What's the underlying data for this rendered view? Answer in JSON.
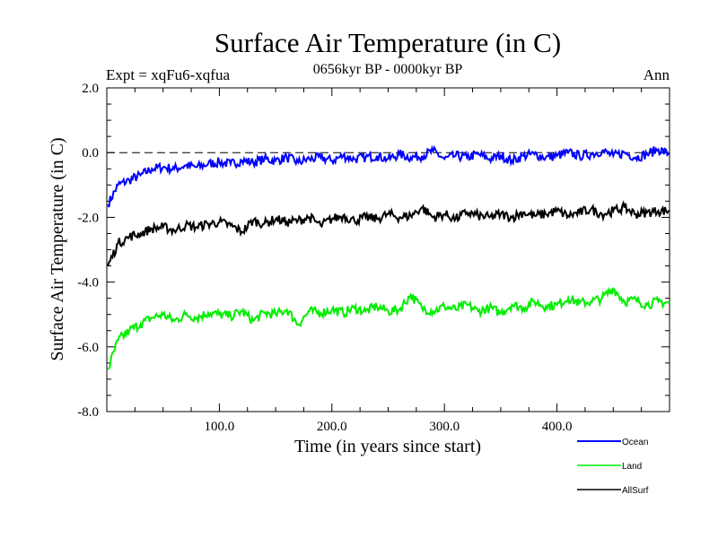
{
  "chart_data": {
    "type": "line",
    "title": "Surface Air Temperature (in C)",
    "subtitle": "0656kyr BP - 0000kyr BP",
    "left_label": "Expt = xqFu6-xqfua",
    "right_label": "Ann",
    "xlabel": "Time (in years since start)",
    "ylabel": "Surface Air Temperature (in C)",
    "xlim": [
      0,
      500
    ],
    "ylim": [
      -8.0,
      2.0
    ],
    "xticks": [
      100,
      200,
      300,
      400
    ],
    "xtick_labels": [
      "100.0",
      "200.0",
      "300.0",
      "400.0"
    ],
    "yticks": [
      2.0,
      0.0,
      -2.0,
      -4.0,
      -6.0,
      -8.0
    ],
    "ytick_labels": [
      "2.0",
      "0.0",
      "-2.0",
      "-4.0",
      "-6.0",
      "-8.0"
    ],
    "reference_line": 0.0,
    "legend_position": "bottom-right",
    "x": [
      1,
      10,
      20,
      30,
      40,
      50,
      60,
      70,
      80,
      90,
      100,
      110,
      120,
      130,
      140,
      150,
      160,
      170,
      180,
      190,
      200,
      210,
      220,
      230,
      240,
      250,
      260,
      270,
      280,
      290,
      300,
      310,
      320,
      330,
      340,
      350,
      360,
      370,
      380,
      390,
      400,
      410,
      420,
      430,
      440,
      450,
      460,
      470,
      480,
      490,
      500
    ],
    "series": [
      {
        "name": "Ocean",
        "color": "#0000ff",
        "values": [
          -1.6,
          -1.0,
          -0.85,
          -0.7,
          -0.5,
          -0.45,
          -0.5,
          -0.4,
          -0.45,
          -0.35,
          -0.3,
          -0.35,
          -0.25,
          -0.3,
          -0.2,
          -0.25,
          -0.15,
          -0.3,
          -0.2,
          -0.15,
          -0.25,
          -0.1,
          -0.2,
          -0.15,
          -0.1,
          -0.2,
          -0.05,
          -0.15,
          -0.1,
          0.05,
          -0.2,
          -0.1,
          -0.15,
          -0.05,
          -0.2,
          -0.1,
          -0.25,
          -0.1,
          -0.05,
          -0.15,
          -0.1,
          0.0,
          -0.1,
          -0.05,
          0.05,
          -0.1,
          0.0,
          -0.15,
          -0.05,
          0.1,
          -0.05
        ]
      },
      {
        "name": "Land",
        "color": "#00ee00",
        "values": [
          -6.7,
          -5.8,
          -5.5,
          -5.3,
          -5.1,
          -5.0,
          -5.2,
          -5.0,
          -5.1,
          -4.95,
          -5.0,
          -5.05,
          -4.9,
          -5.2,
          -4.95,
          -5.0,
          -4.85,
          -5.3,
          -4.9,
          -4.95,
          -4.85,
          -4.95,
          -4.8,
          -4.9,
          -4.75,
          -4.9,
          -4.85,
          -4.4,
          -4.8,
          -4.9,
          -4.75,
          -4.85,
          -4.7,
          -4.9,
          -4.8,
          -4.95,
          -4.7,
          -4.8,
          -4.6,
          -4.75,
          -4.7,
          -4.5,
          -4.65,
          -4.6,
          -4.5,
          -4.2,
          -4.6,
          -4.55,
          -4.7,
          -4.6,
          -4.65
        ]
      },
      {
        "name": "AllSurf",
        "color": "#000000",
        "values": [
          -3.5,
          -2.8,
          -2.6,
          -2.5,
          -2.35,
          -2.3,
          -2.4,
          -2.25,
          -2.3,
          -2.2,
          -2.15,
          -2.25,
          -2.45,
          -2.1,
          -2.2,
          -2.05,
          -2.15,
          -2.1,
          -2.0,
          -2.25,
          -2.05,
          -1.95,
          -2.1,
          -2.0,
          -2.05,
          -1.9,
          -2.0,
          -1.95,
          -1.7,
          -2.0,
          -1.9,
          -2.05,
          -1.85,
          -1.95,
          -2.0,
          -1.9,
          -2.0,
          -1.85,
          -1.95,
          -1.9,
          -1.8,
          -1.95,
          -1.85,
          -1.75,
          -1.9,
          -1.8,
          -1.7,
          -1.9,
          -1.85,
          -1.8,
          -1.8
        ]
      }
    ]
  }
}
